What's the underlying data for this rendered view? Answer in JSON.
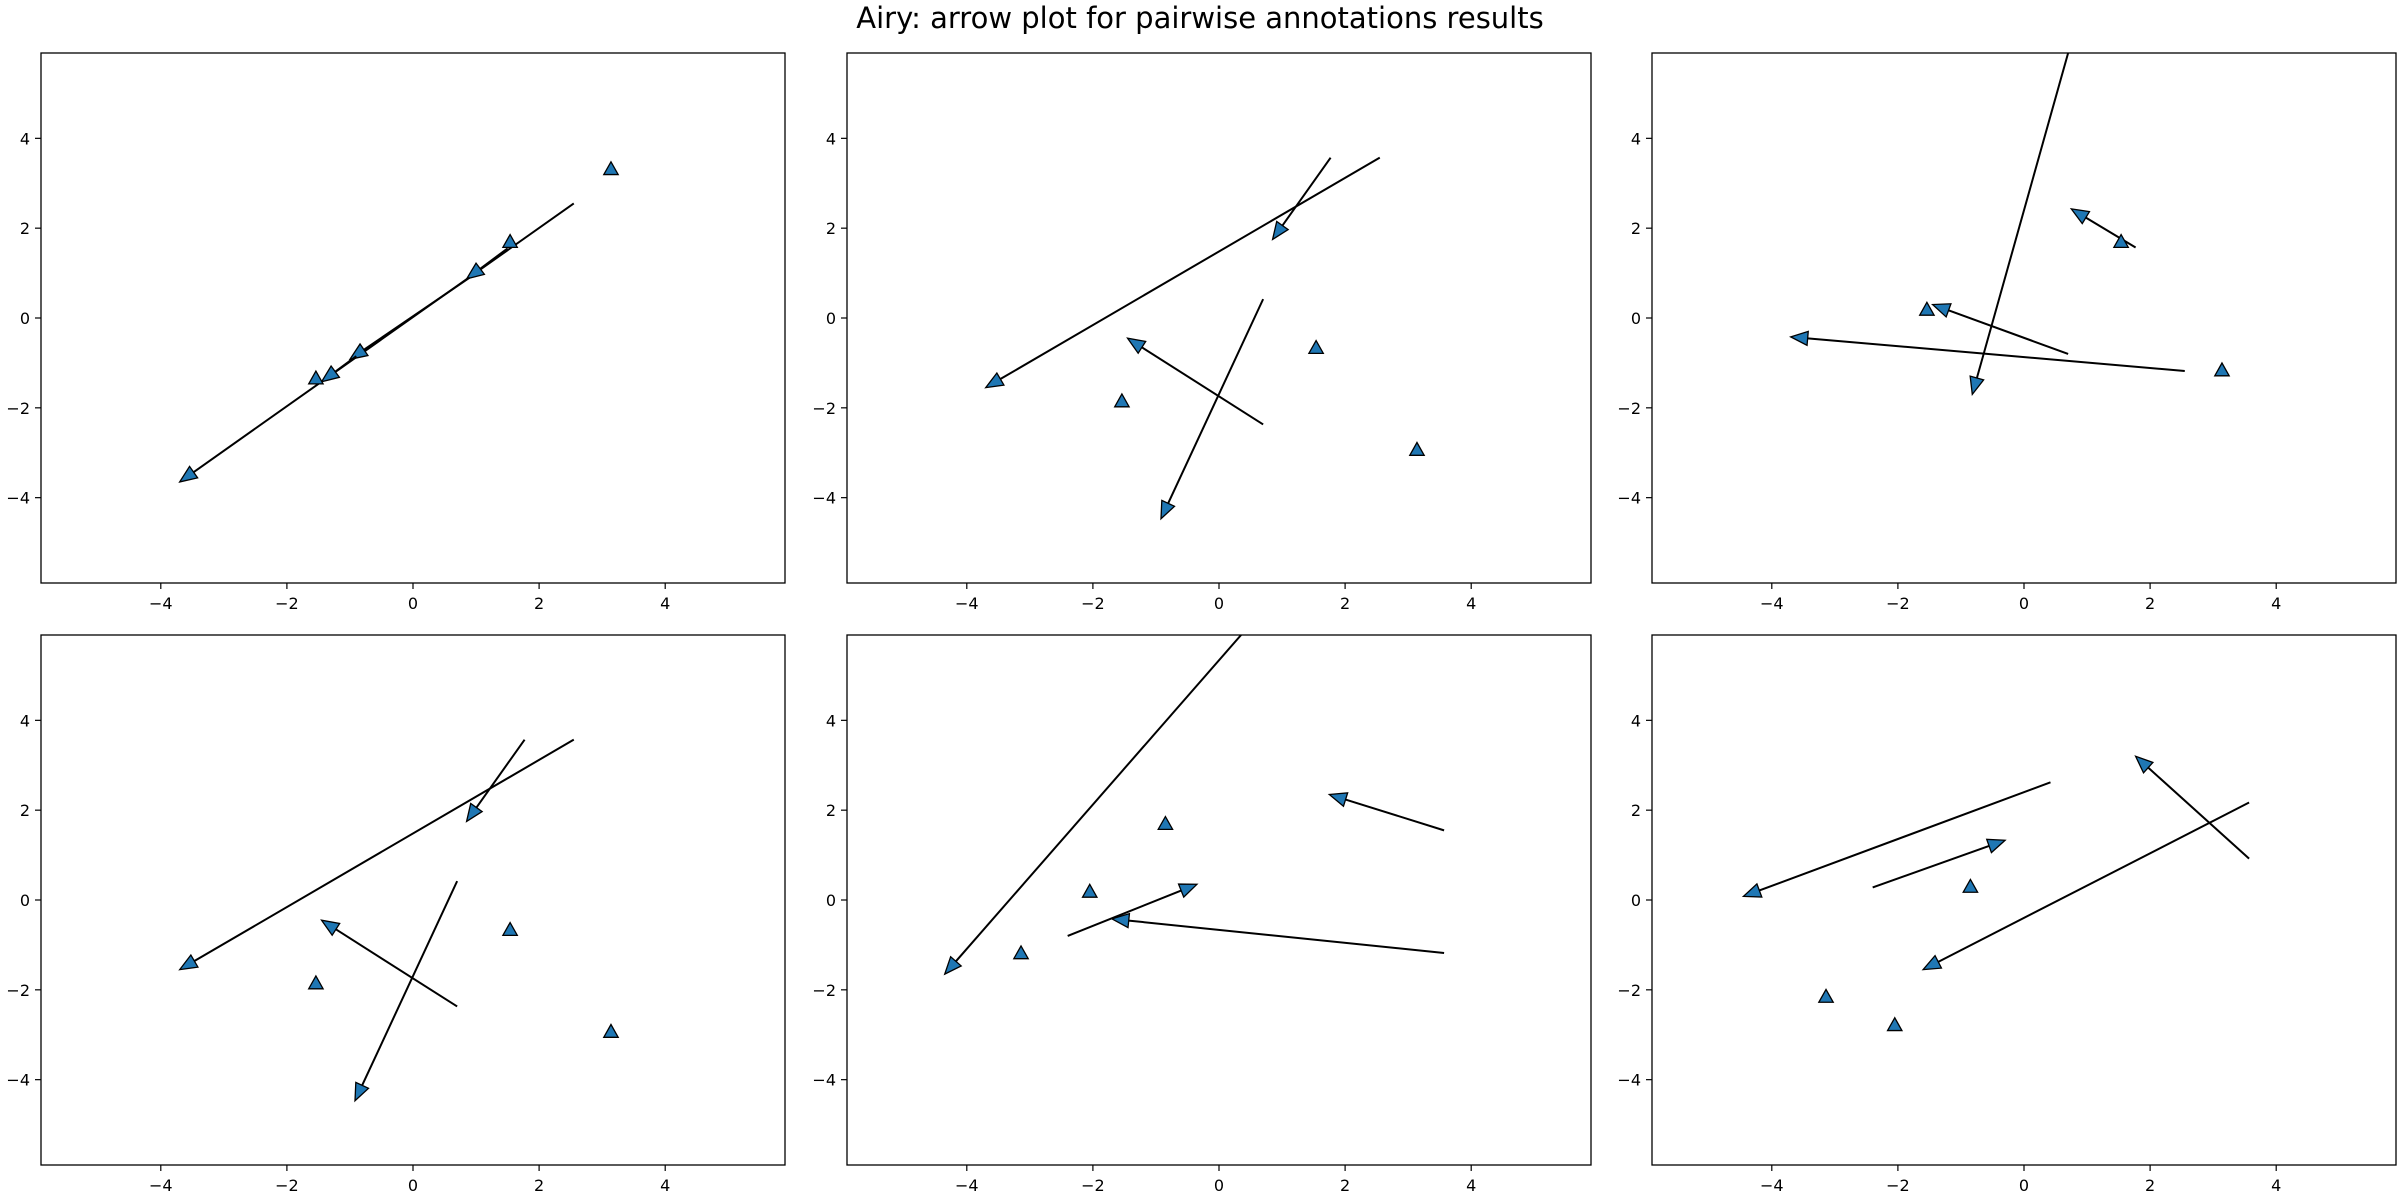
{
  "figure": {
    "title": "Airy: arrow plot for pairwise annotations results",
    "colors": {
      "marker_fill": "#1f77b4",
      "marker_edge": "#000000",
      "arrow": "#000000",
      "axes": "#000000"
    }
  },
  "chart_data": [
    {
      "type": "scatter",
      "xlim": [
        -5.9,
        5.9
      ],
      "ylim": [
        -5.9,
        5.9
      ],
      "xticks": [
        -4,
        -2,
        0,
        2,
        4
      ],
      "yticks": [
        -4,
        -2,
        0,
        2,
        4
      ],
      "grid": false,
      "points": [
        [
          3.14,
          3.3
        ],
        [
          1.54,
          1.68
        ],
        [
          -1.54,
          -1.36
        ]
      ],
      "arrows": [
        {
          "from": [
            2.55,
            2.55
          ],
          "to": [
            -3.7,
            -3.65
          ]
        },
        {
          "from": [
            1.5,
            1.55
          ],
          "to": [
            0.85,
            0.87
          ]
        },
        {
          "from": [
            0.9,
            0.9
          ],
          "to": [
            -1.0,
            -0.92
          ]
        },
        {
          "from": [
            -0.9,
            -0.85
          ],
          "to": [
            -1.45,
            -1.42
          ]
        }
      ]
    },
    {
      "type": "scatter",
      "xlim": [
        -5.9,
        5.9
      ],
      "ylim": [
        -5.9,
        5.9
      ],
      "xticks": [
        -4,
        -2,
        0,
        2,
        4
      ],
      "yticks": [
        -4,
        -2,
        0,
        2,
        4
      ],
      "grid": false,
      "points": [
        [
          -1.54,
          -1.87
        ],
        [
          1.54,
          -0.68
        ],
        [
          3.14,
          -2.95
        ]
      ],
      "arrows": [
        {
          "from": [
            2.55,
            3.57
          ],
          "to": [
            -3.7,
            -1.55
          ]
        },
        {
          "from": [
            1.77,
            3.57
          ],
          "to": [
            0.85,
            1.75
          ]
        },
        {
          "from": [
            0.7,
            -2.37
          ],
          "to": [
            -1.45,
            -0.45
          ]
        },
        {
          "from": [
            0.7,
            0.42
          ],
          "to": [
            -0.92,
            -4.47
          ]
        }
      ]
    },
    {
      "type": "scatter",
      "xlim": [
        -5.9,
        5.9
      ],
      "ylim": [
        -5.9,
        5.9
      ],
      "xticks": [
        -4,
        -2,
        0,
        2,
        4
      ],
      "yticks": [
        -4,
        -2,
        0,
        2,
        4
      ],
      "grid": false,
      "points": [
        [
          1.54,
          1.68
        ],
        [
          -1.54,
          0.17
        ],
        [
          3.14,
          -1.18
        ]
      ],
      "arrows": [
        {
          "from": [
            0.7,
            5.9
          ],
          "to": [
            -0.82,
            -1.7
          ]
        },
        {
          "from": [
            1.77,
            1.57
          ],
          "to": [
            0.75,
            2.43
          ]
        },
        {
          "from": [
            0.7,
            -0.8
          ],
          "to": [
            -1.45,
            0.3
          ]
        },
        {
          "from": [
            2.55,
            -1.18
          ],
          "to": [
            -3.7,
            -0.42
          ]
        }
      ]
    },
    {
      "type": "scatter",
      "xlim": [
        -5.9,
        5.9
      ],
      "ylim": [
        -5.9,
        5.9
      ],
      "xticks": [
        -4,
        -2,
        0,
        2,
        4
      ],
      "yticks": [
        -4,
        -2,
        0,
        2,
        4
      ],
      "grid": false,
      "points": [
        [
          -1.54,
          -1.87
        ],
        [
          1.54,
          -0.68
        ],
        [
          3.14,
          -2.95
        ]
      ],
      "arrows": [
        {
          "from": [
            2.55,
            3.57
          ],
          "to": [
            -3.7,
            -1.55
          ]
        },
        {
          "from": [
            1.77,
            3.57
          ],
          "to": [
            0.85,
            1.75
          ]
        },
        {
          "from": [
            0.7,
            -2.37
          ],
          "to": [
            -1.45,
            -0.45
          ]
        },
        {
          "from": [
            0.7,
            0.42
          ],
          "to": [
            -0.92,
            -4.47
          ]
        }
      ]
    },
    {
      "type": "scatter",
      "xlim": [
        -5.9,
        5.9
      ],
      "ylim": [
        -5.9,
        5.9
      ],
      "xticks": [
        -4,
        -2,
        0,
        2,
        4
      ],
      "yticks": [
        -4,
        -2,
        0,
        2,
        4
      ],
      "grid": false,
      "points": [
        [
          -0.85,
          1.68
        ],
        [
          -2.05,
          0.17
        ],
        [
          -3.14,
          -1.2
        ]
      ],
      "arrows": [
        {
          "from": [
            0.35,
            5.9
          ],
          "to": [
            -4.35,
            -1.65
          ]
        },
        {
          "from": [
            3.57,
            1.55
          ],
          "to": [
            1.75,
            2.35
          ]
        },
        {
          "from": [
            -2.4,
            -0.8
          ],
          "to": [
            -0.35,
            0.35
          ]
        },
        {
          "from": [
            3.57,
            -1.18
          ],
          "to": [
            -1.7,
            -0.42
          ]
        }
      ]
    },
    {
      "type": "scatter",
      "xlim": [
        -5.9,
        5.9
      ],
      "ylim": [
        -5.9,
        5.9
      ],
      "xticks": [
        -4,
        -2,
        0,
        2,
        4
      ],
      "yticks": [
        -4,
        -2,
        0,
        2,
        4
      ],
      "grid": false,
      "points": [
        [
          -0.85,
          0.28
        ],
        [
          -3.14,
          -2.17
        ],
        [
          -2.05,
          -2.8
        ]
      ],
      "arrows": [
        {
          "from": [
            0.42,
            2.62
          ],
          "to": [
            -4.45,
            0.08
          ]
        },
        {
          "from": [
            -2.4,
            0.28
          ],
          "to": [
            -0.3,
            1.33
          ]
        },
        {
          "from": [
            3.57,
            0.92
          ],
          "to": [
            1.77,
            3.2
          ]
        },
        {
          "from": [
            3.57,
            2.17
          ],
          "to": [
            -1.6,
            -1.55
          ]
        }
      ]
    }
  ]
}
